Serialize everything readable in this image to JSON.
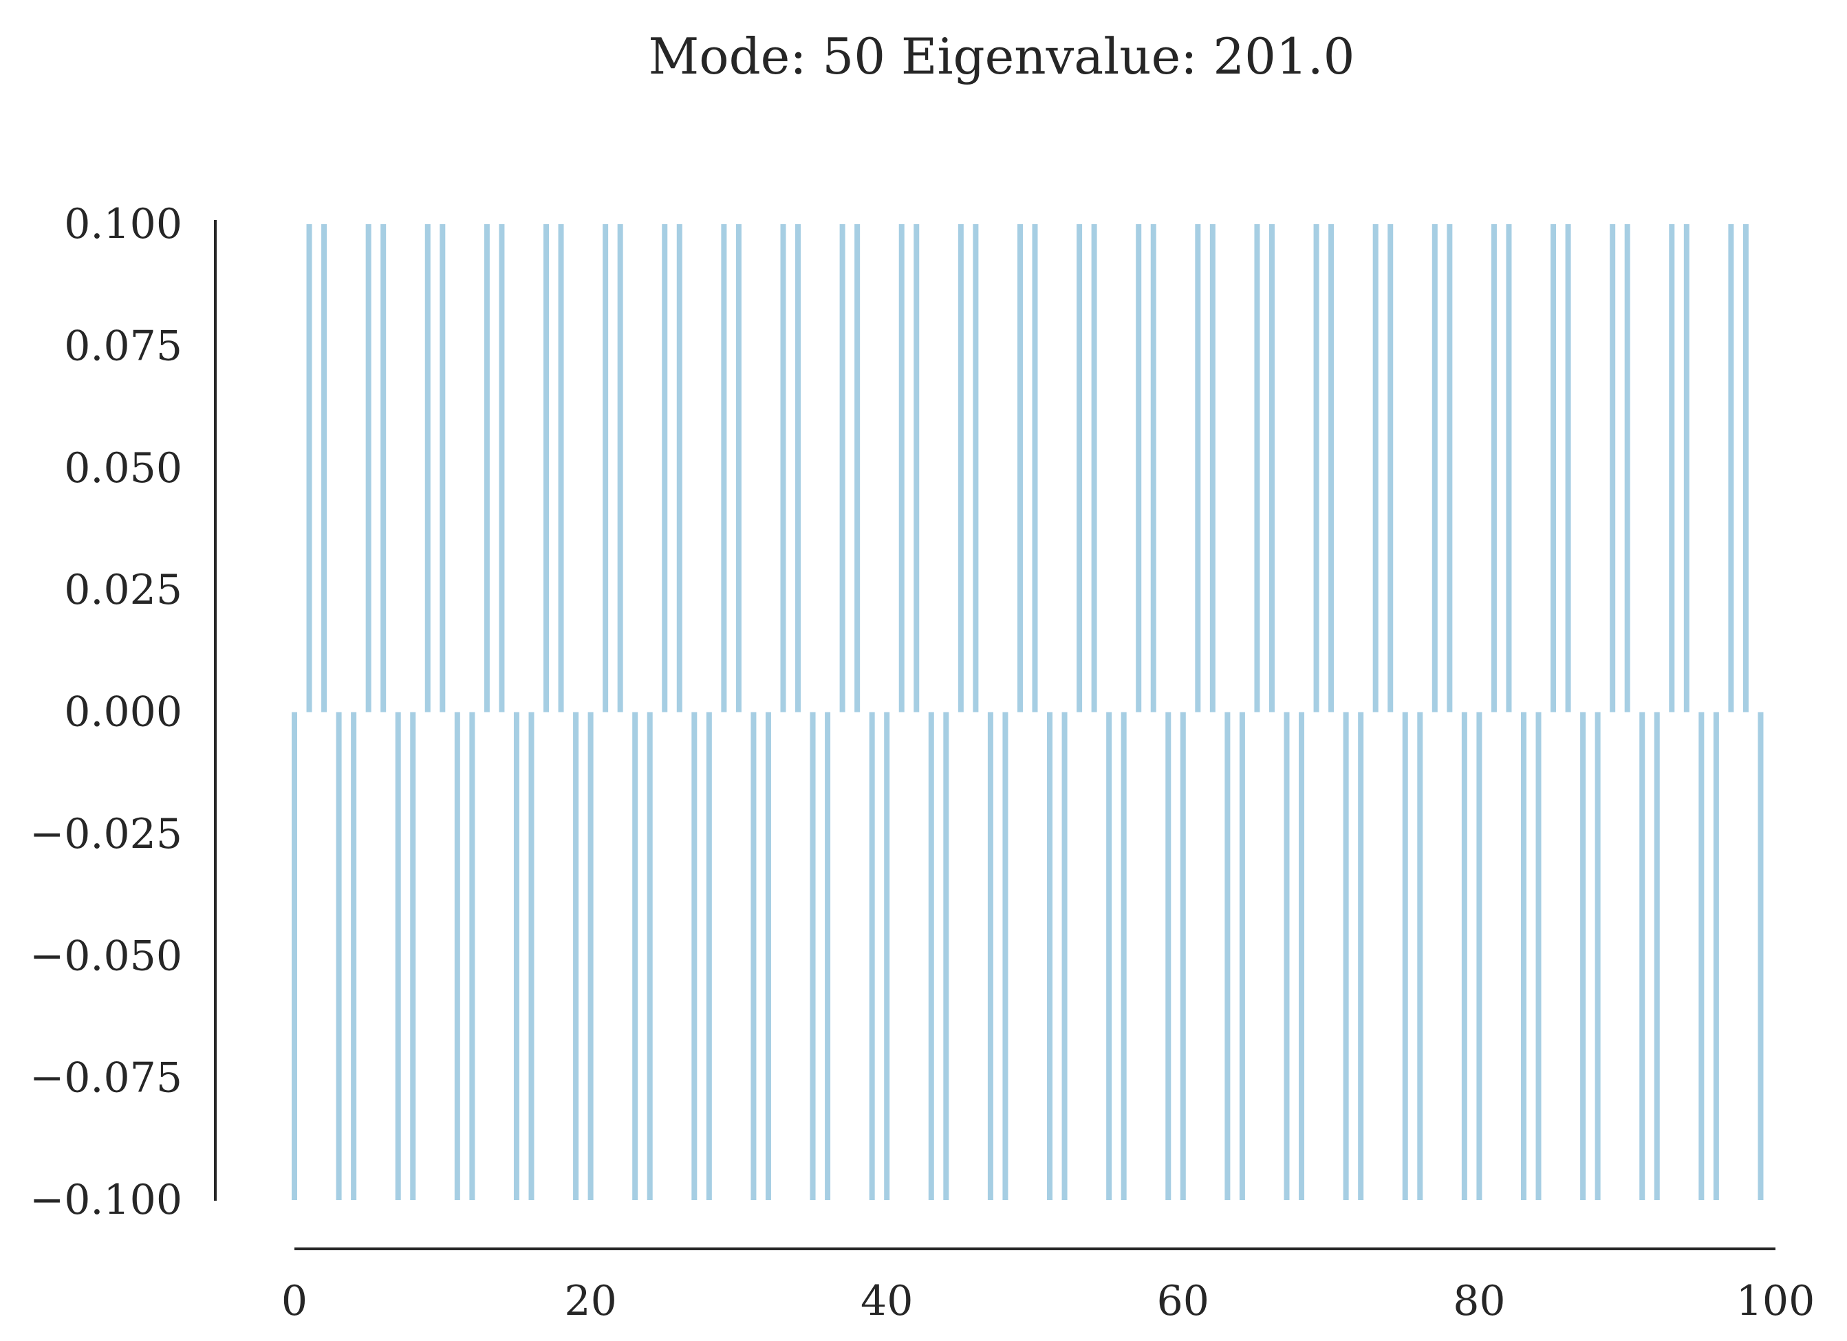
{
  "chart_data": {
    "type": "bar",
    "title": "Mode: 50 Eigenvalue: 201.0",
    "xlabel": "",
    "ylabel": "",
    "xlim": [
      0,
      100
    ],
    "ylim": [
      -0.1,
      0.1
    ],
    "x_ticks": [
      "0",
      "20",
      "40",
      "60",
      "80",
      "100"
    ],
    "y_ticks": [
      "0.100",
      "0.075",
      "0.050",
      "0.025",
      "0.000",
      "−0.025",
      "−0.050",
      "−0.075",
      "−0.100"
    ],
    "grid": false,
    "legend": false,
    "bar_color": "#a6cee3",
    "x": [
      0,
      1,
      2,
      3,
      4,
      5,
      6,
      7,
      8,
      9,
      10,
      11,
      12,
      13,
      14,
      15,
      16,
      17,
      18,
      19,
      20,
      21,
      22,
      23,
      24,
      25,
      26,
      27,
      28,
      29,
      30,
      31,
      32,
      33,
      34,
      35,
      36,
      37,
      38,
      39,
      40,
      41,
      42,
      43,
      44,
      45,
      46,
      47,
      48,
      49,
      50,
      51,
      52,
      53,
      54,
      55,
      56,
      57,
      58,
      59,
      60,
      61,
      62,
      63,
      64,
      65,
      66,
      67,
      68,
      69,
      70,
      71,
      72,
      73,
      74,
      75,
      76,
      77,
      78,
      79,
      80,
      81,
      82,
      83,
      84,
      85,
      86,
      87,
      88,
      89,
      90,
      91,
      92,
      93,
      94,
      95,
      96,
      97,
      98,
      99
    ],
    "values": [
      -0.1,
      0.1,
      0.1,
      -0.1,
      -0.1,
      0.1,
      0.1,
      -0.1,
      -0.1,
      0.1,
      0.1,
      -0.1,
      -0.1,
      0.1,
      0.1,
      -0.1,
      -0.1,
      0.1,
      0.1,
      -0.1,
      -0.1,
      0.1,
      0.1,
      -0.1,
      -0.1,
      0.1,
      0.1,
      -0.1,
      -0.1,
      0.1,
      0.1,
      -0.1,
      -0.1,
      0.1,
      0.1,
      -0.1,
      -0.1,
      0.1,
      0.1,
      -0.1,
      -0.1,
      0.1,
      0.1,
      -0.1,
      -0.1,
      0.1,
      0.1,
      -0.1,
      -0.1,
      0.1,
      0.1,
      -0.1,
      -0.1,
      0.1,
      0.1,
      -0.1,
      -0.1,
      0.1,
      0.1,
      -0.1,
      -0.1,
      0.1,
      0.1,
      -0.1,
      -0.1,
      0.1,
      0.1,
      -0.1,
      -0.1,
      0.1,
      0.1,
      -0.1,
      -0.1,
      0.1,
      0.1,
      -0.1,
      -0.1,
      0.1,
      0.1,
      -0.1,
      -0.1,
      0.1,
      0.1,
      -0.1,
      -0.1,
      0.1,
      0.1,
      -0.1,
      -0.1,
      0.1,
      0.1,
      -0.1,
      -0.1,
      0.1,
      0.1,
      -0.1,
      -0.1,
      0.1,
      0.1,
      -0.1
    ]
  }
}
